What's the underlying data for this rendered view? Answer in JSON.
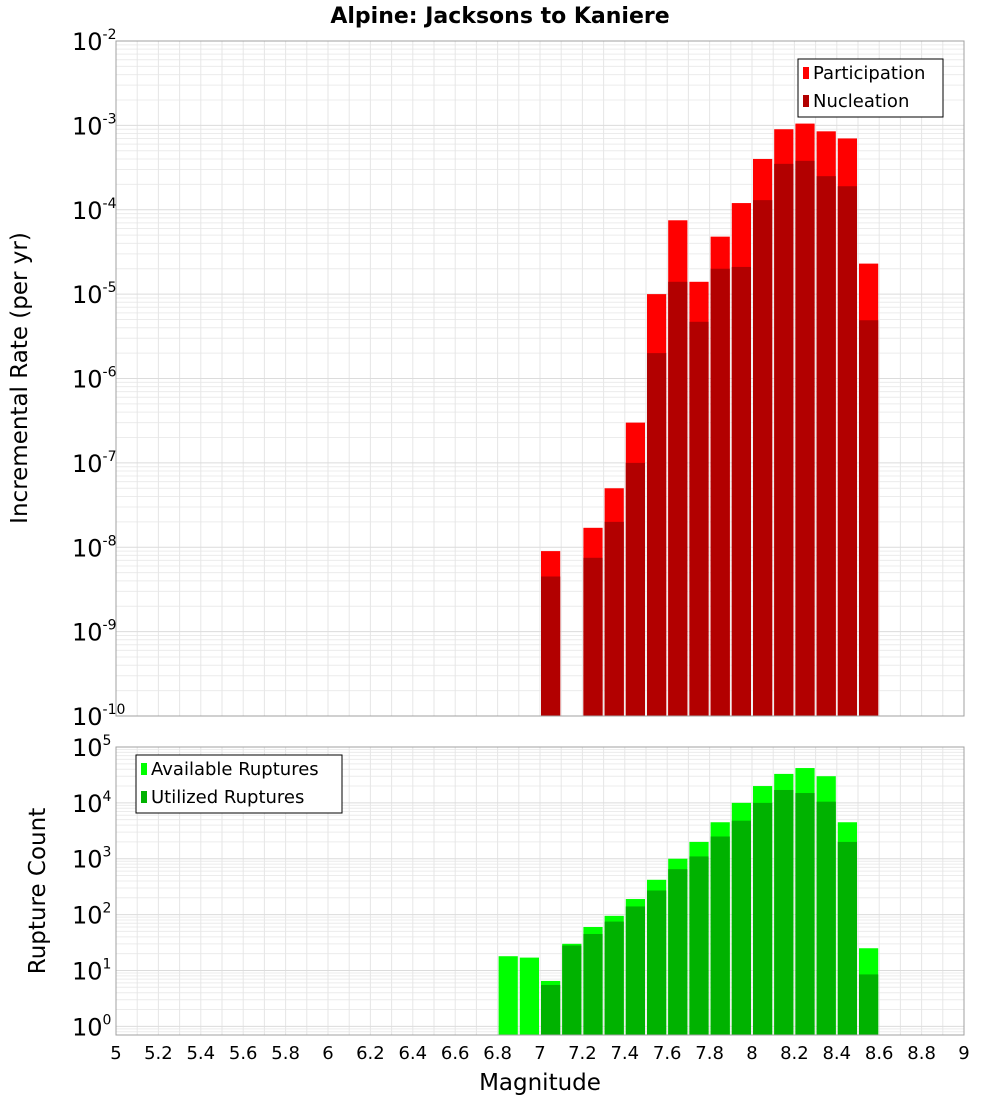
{
  "chart_data": [
    {
      "type": "bar",
      "title": "Alpine: Jacksons to Kaniere",
      "xlabel": "Magnitude",
      "ylabel": "Incremental Rate (per yr)",
      "yscale": "log",
      "ylim": [
        1e-10,
        0.01
      ],
      "xlim": [
        5,
        9
      ],
      "bin_width": 0.1,
      "grid": true,
      "legend_position": "top-right",
      "x": [
        7.05,
        7.15,
        7.25,
        7.35,
        7.45,
        7.55,
        7.65,
        7.75,
        7.85,
        7.95,
        8.05,
        8.15,
        8.25,
        8.35,
        8.45,
        8.55
      ],
      "series": [
        {
          "name": "Participation",
          "color": "#ff0000",
          "values": [
            9e-09,
            null,
            1.7e-08,
            5e-08,
            3e-07,
            1e-05,
            7.5e-05,
            1.4e-05,
            4.8e-05,
            0.00012,
            0.0004,
            0.0009,
            0.00105,
            0.00085,
            0.0007,
            2.3e-05
          ]
        },
        {
          "name": "Nucleation",
          "color": "#b20000",
          "values": [
            4.5e-09,
            null,
            7.5e-09,
            2e-08,
            1e-07,
            2e-06,
            1.4e-05,
            4.7e-06,
            2e-05,
            2.1e-05,
            0.00013,
            0.00035,
            0.00038,
            0.00025,
            0.00019,
            4.9e-06
          ]
        }
      ],
      "x_ticks": [
        "5",
        "5.2",
        "5.4",
        "5.6",
        "5.8",
        "6",
        "6.2",
        "6.4",
        "6.6",
        "6.8",
        "7",
        "7.2",
        "7.4",
        "7.6",
        "7.8",
        "8",
        "8.2",
        "8.4",
        "8.6",
        "8.8",
        "9"
      ],
      "y_tick_exponents": [
        "-10",
        "-9",
        "-8",
        "-7",
        "-6",
        "-5",
        "-4",
        "-3",
        "-2"
      ]
    },
    {
      "type": "bar",
      "xlabel": "Magnitude",
      "ylabel": "Rupture Count",
      "yscale": "log",
      "ylim": [
        0.7,
        100000
      ],
      "xlim": [
        5,
        9
      ],
      "bin_width": 0.1,
      "grid": true,
      "legend_position": "top-left",
      "x": [
        6.85,
        6.95,
        7.05,
        7.15,
        7.25,
        7.35,
        7.45,
        7.55,
        7.65,
        7.75,
        7.85,
        7.95,
        8.05,
        8.15,
        8.25,
        8.35,
        8.45,
        8.55
      ],
      "series": [
        {
          "name": "Available Ruptures",
          "color": "#00ff00",
          "values": [
            18,
            17,
            6.5,
            30,
            60,
            95,
            190,
            420,
            1000,
            2000,
            4500,
            10000,
            20000,
            33000,
            42000,
            30000,
            4500,
            25
          ]
        },
        {
          "name": "Utilized Ruptures",
          "color": "#00b200",
          "values": [
            null,
            null,
            5.5,
            28,
            45,
            75,
            140,
            270,
            650,
            1100,
            2500,
            4800,
            10000,
            17000,
            15000,
            10500,
            2000,
            8.5
          ]
        }
      ],
      "x_ticks": [
        "5",
        "5.2",
        "5.4",
        "5.6",
        "5.8",
        "6",
        "6.2",
        "6.4",
        "6.6",
        "6.8",
        "7",
        "7.2",
        "7.4",
        "7.6",
        "7.8",
        "8",
        "8.2",
        "8.4",
        "8.6",
        "8.8",
        "9"
      ],
      "y_tick_exponents": [
        "0",
        "1",
        "2",
        "3",
        "4",
        "5"
      ]
    }
  ]
}
